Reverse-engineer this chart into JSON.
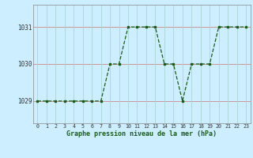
{
  "x": [
    0,
    1,
    2,
    3,
    4,
    5,
    6,
    7,
    8,
    9,
    10,
    11,
    12,
    13,
    14,
    15,
    16,
    17,
    18,
    19,
    20,
    21,
    22,
    23
  ],
  "y": [
    1029,
    1029,
    1029,
    1029,
    1029,
    1029,
    1029,
    1029,
    1030,
    1030,
    1031,
    1031,
    1031,
    1031,
    1030,
    1030,
    1029,
    1030,
    1030,
    1030,
    1031,
    1031,
    1031,
    1031
  ],
  "line_color": "#1a5c1a",
  "marker": "s",
  "marker_size": 2.0,
  "bg_color": "#cceeff",
  "grid_color": "#aad4d4",
  "grid_red_color": "#cc8888",
  "title": "Graphe pression niveau de la mer (hPa)",
  "xlabel_labels": [
    "0",
    "1",
    "2",
    "3",
    "4",
    "5",
    "6",
    "7",
    "8",
    "9",
    "10",
    "11",
    "12",
    "13",
    "14",
    "15",
    "16",
    "17",
    "18",
    "19",
    "20",
    "21",
    "22",
    "23"
  ],
  "yticks": [
    1029,
    1030,
    1031
  ],
  "ylim": [
    1028.4,
    1031.6
  ],
  "xlim": [
    -0.5,
    23.5
  ]
}
